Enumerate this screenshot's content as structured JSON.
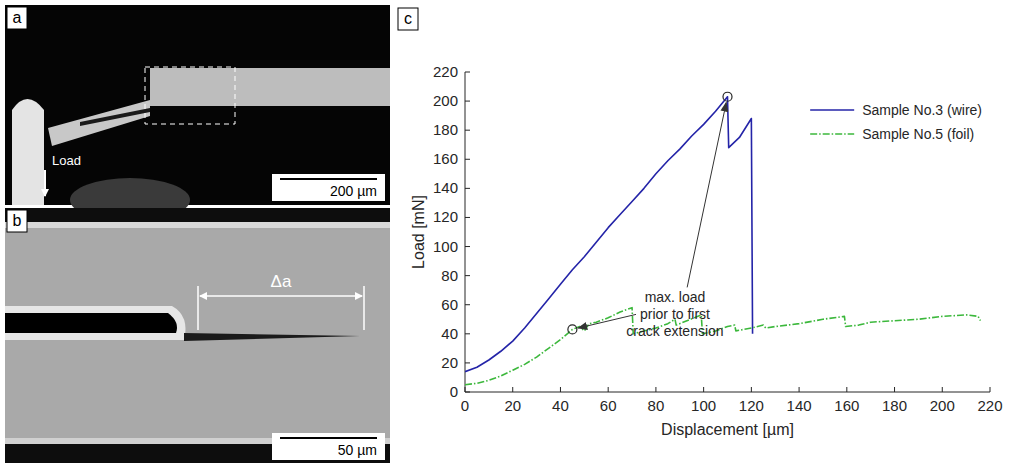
{
  "images": [
    {
      "label": "a",
      "load_label": "Load",
      "scale_bar": "200 µm"
    },
    {
      "label": "b",
      "dimension_label": "Δa",
      "scale_bar": "50 µm"
    }
  ],
  "chart_panel_label": "c",
  "chart_data": {
    "type": "line",
    "x_label": "Displacement [µm]",
    "y_label": "Load [mN]",
    "xlim": [
      0,
      220
    ],
    "ylim": [
      0,
      220
    ],
    "xticks": [
      0,
      20,
      40,
      60,
      80,
      100,
      120,
      140,
      160,
      180,
      200,
      220
    ],
    "yticks": [
      0,
      20,
      40,
      60,
      80,
      100,
      120,
      140,
      160,
      180,
      200,
      220
    ],
    "grid": false,
    "legend": "upper right",
    "series": [
      {
        "name": "Sample No.3 (wire)",
        "color": "#2424a8",
        "line_style": "solid",
        "x": [
          0,
          5,
          10,
          15,
          20,
          25,
          30,
          35,
          40,
          45,
          50,
          55,
          60,
          65,
          70,
          75,
          80,
          85,
          90,
          95,
          100,
          105,
          110,
          110.5,
          115,
          120,
          120.5
        ],
        "values": [
          14,
          17,
          22,
          28,
          35,
          44,
          54,
          64,
          74,
          84,
          93,
          103,
          113,
          122,
          131,
          140,
          150,
          159,
          167,
          176,
          184,
          193,
          203,
          168,
          175,
          188,
          40
        ]
      },
      {
        "name": "Sample No.5 (foil)",
        "color": "#3cb83c",
        "line_style": "dashdot",
        "x": [
          0,
          5,
          10,
          15,
          20,
          25,
          30,
          35,
          40,
          45,
          48,
          50,
          52,
          55,
          60,
          65,
          70,
          70.5,
          75,
          80,
          85,
          88,
          88.5,
          93,
          99,
          99.5,
          105,
          110,
          113,
          113.5,
          120,
          125,
          126,
          130,
          140,
          150,
          159,
          159.5,
          165,
          170,
          180,
          190,
          200,
          210,
          215,
          216
        ],
        "values": [
          5,
          6,
          8,
          11,
          15,
          19,
          24,
          30,
          36,
          43,
          45,
          42,
          47,
          48,
          51,
          55,
          58,
          40,
          42,
          44,
          47,
          50,
          46,
          49,
          53,
          40,
          42,
          45,
          46,
          42,
          44,
          46,
          44,
          45,
          47,
          50,
          52,
          45,
          46,
          48,
          49,
          50,
          52,
          53,
          52,
          49
        ]
      }
    ],
    "annotations": [
      {
        "lines": [
          "max. load",
          "prior to first",
          "crack extension"
        ],
        "points": [
          {
            "x": 110,
            "y": 203
          },
          {
            "x": 45,
            "y": 43
          }
        ]
      }
    ]
  }
}
